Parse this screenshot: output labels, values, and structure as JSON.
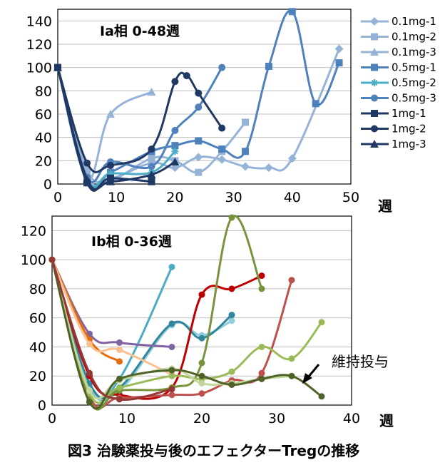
{
  "caption": "図3 治験薬投与後のエフェクターTregの推移",
  "chart_data": [
    {
      "type": "line",
      "title": "Ia相 0-48週",
      "xunit": "週",
      "xlim": [
        0,
        50
      ],
      "ylim": [
        0,
        150
      ],
      "xticks": [
        "0",
        "10",
        "20",
        "30",
        "40",
        "50"
      ],
      "yticks": [
        "0",
        "20",
        "40",
        "60",
        "80",
        "100",
        "120",
        "140"
      ],
      "grid": true,
      "legend_position": "right",
      "series": [
        {
          "name": "0.1mg-1",
          "color": "#95b3d7",
          "marker": "diamond",
          "x": [
            0,
            5,
            9,
            16,
            20,
            24,
            28,
            32,
            36,
            40,
            48
          ],
          "y": [
            100,
            12,
            5,
            18,
            14,
            23,
            21,
            15,
            14,
            22,
            116
          ]
        },
        {
          "name": "0.1mg-2",
          "color": "#95b3d7",
          "marker": "square",
          "x": [
            0,
            5,
            9,
            16,
            20,
            24,
            28,
            32
          ],
          "y": [
            100,
            8,
            3,
            22,
            20,
            10,
            28,
            53
          ]
        },
        {
          "name": "0.1mg-3",
          "color": "#95b3d7",
          "marker": "triangle",
          "x": [
            0,
            5,
            9,
            16
          ],
          "y": [
            100,
            5,
            60,
            79
          ]
        },
        {
          "name": "0.5mg-1",
          "color": "#4f81bd",
          "marker": "square",
          "x": [
            0,
            5,
            9,
            16,
            20,
            24,
            28,
            32,
            36,
            40,
            44,
            48
          ],
          "y": [
            100,
            2,
            10,
            28,
            33,
            37,
            30,
            28,
            101,
            148,
            69,
            104
          ]
        },
        {
          "name": "0.5mg-2",
          "color": "#4bacc6",
          "marker": "star",
          "x": [
            0,
            5,
            9,
            16,
            20
          ],
          "y": [
            100,
            4,
            9,
            10,
            28
          ]
        },
        {
          "name": "0.5mg-3",
          "color": "#4f81bd",
          "marker": "circle",
          "x": [
            0,
            5,
            9,
            16,
            20,
            24,
            28
          ],
          "y": [
            100,
            6,
            19,
            15,
            46,
            66,
            100
          ]
        },
        {
          "name": "1mg-1",
          "color": "#1f3864",
          "marker": "square",
          "x": [
            0,
            5,
            9,
            16
          ],
          "y": [
            100,
            1,
            5,
            2
          ]
        },
        {
          "name": "1mg-2",
          "color": "#1f3864",
          "marker": "circle",
          "x": [
            0,
            5,
            9,
            16,
            20,
            22,
            24,
            28
          ],
          "y": [
            100,
            18,
            16,
            30,
            88,
            93,
            78,
            48
          ]
        },
        {
          "name": "1mg-3",
          "color": "#1f3864",
          "marker": "triangle",
          "x": [
            0,
            5,
            9,
            16,
            20
          ],
          "y": [
            100,
            4,
            2,
            8,
            19
          ]
        }
      ]
    },
    {
      "type": "line",
      "title": "Ib相 0-36週",
      "xunit": "週",
      "xlim": [
        0,
        40
      ],
      "ylim": [
        0,
        130
      ],
      "xticks": [
        "0",
        "10",
        "20",
        "30",
        "40"
      ],
      "yticks": [
        "0",
        "20",
        "40",
        "60",
        "80",
        "100",
        "120"
      ],
      "grid": true,
      "annotation": "維持投与",
      "series": [
        {
          "color": "#4bacc6",
          "marker": "circle",
          "x": [
            0,
            5,
            9,
            16
          ],
          "y": [
            100,
            12,
            18,
            95
          ]
        },
        {
          "color": "#93cddd",
          "marker": "circle",
          "x": [
            0,
            5,
            9,
            16,
            20,
            24
          ],
          "y": [
            100,
            14,
            10,
            55,
            48,
            58
          ]
        },
        {
          "color": "#31859c",
          "marker": "circle",
          "x": [
            0,
            5,
            9,
            16,
            20,
            24
          ],
          "y": [
            100,
            15,
            12,
            56,
            46,
            62
          ]
        },
        {
          "color": "#8064a2",
          "marker": "circle",
          "x": [
            0,
            5,
            9,
            16
          ],
          "y": [
            100,
            49,
            43,
            40
          ]
        },
        {
          "color": "#e46c0a",
          "marker": "circle",
          "x": [
            0,
            5,
            9
          ],
          "y": [
            100,
            45,
            30
          ]
        },
        {
          "color": "#fac090",
          "marker": "circle",
          "x": [
            0,
            5,
            9,
            16
          ],
          "y": [
            100,
            42,
            38,
            21
          ]
        },
        {
          "color": "#c00000",
          "marker": "circle",
          "x": [
            0,
            5,
            9,
            16,
            20,
            24,
            28
          ],
          "y": [
            100,
            20,
            7,
            12,
            76,
            80,
            89
          ]
        },
        {
          "color": "#c0504d",
          "marker": "circle",
          "x": [
            0,
            5,
            9,
            16,
            20,
            24,
            28,
            32
          ],
          "y": [
            100,
            6,
            5,
            7,
            8,
            17,
            22,
            86
          ]
        },
        {
          "color": "#77933c",
          "marker": "circle",
          "x": [
            0,
            5,
            9,
            16,
            20,
            24,
            28
          ],
          "y": [
            100,
            3,
            10,
            12,
            29,
            129,
            80
          ]
        },
        {
          "color": "#9bbb59",
          "marker": "circle",
          "x": [
            0,
            5,
            9,
            16,
            20,
            24,
            28,
            32,
            36
          ],
          "y": [
            100,
            8,
            12,
            20,
            18,
            23,
            40,
            32,
            57
          ]
        },
        {
          "color": "#c3d69b",
          "marker": "circle",
          "x": [
            0,
            5,
            9,
            16,
            20,
            24,
            28,
            32
          ],
          "y": [
            100,
            10,
            17,
            25,
            15,
            15,
            18,
            20
          ]
        },
        {
          "color": "#4f6228",
          "marker": "circle",
          "x": [
            0,
            5,
            9,
            16,
            20,
            24,
            28,
            32,
            36
          ],
          "y": [
            100,
            2,
            18,
            24,
            20,
            14,
            18,
            20,
            6
          ]
        },
        {
          "color": "#953735",
          "marker": "circle",
          "x": [
            0,
            5,
            9,
            16
          ],
          "y": [
            100,
            22,
            4,
            11
          ]
        }
      ]
    }
  ]
}
